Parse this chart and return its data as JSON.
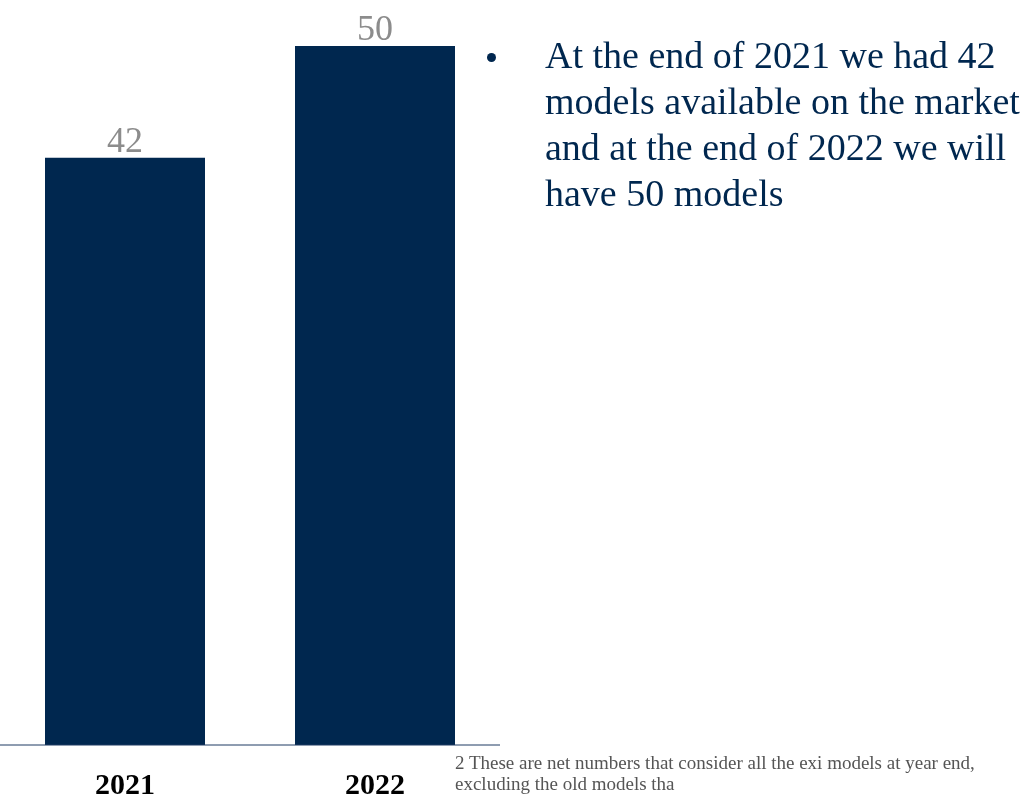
{
  "chart_data": {
    "type": "bar",
    "categories": [
      "2021",
      "2022"
    ],
    "values": [
      42,
      50
    ],
    "color": "#00274f",
    "data_labels": true,
    "grid": false,
    "legend": false,
    "annotations": [
      "At the end of 2021 we had 42 models available on the market and at the end of 2022 we will have 50 models",
      "2 These are net numbers that consider all the exi models at year end, excluding the old models tha"
    ]
  }
}
